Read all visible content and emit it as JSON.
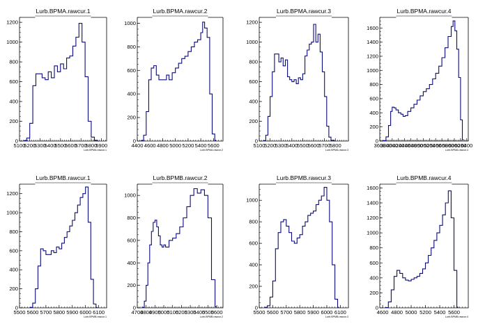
{
  "chart_data": [
    {
      "type": "line",
      "title": "Lurb.BPMA.rawcur.1",
      "xlabel": "Lurb.BPMA.rawcur.1",
      "xlim": [
        5100,
        5950
      ],
      "ylim": [
        0,
        1250
      ],
      "xticks": [
        5100,
        5200,
        5300,
        5400,
        5500,
        5600,
        5700,
        5800,
        5900
      ],
      "yticks": [
        0,
        200,
        400,
        600,
        800,
        1000,
        1200
      ],
      "x": [
        5140,
        5170,
        5200,
        5230,
        5260,
        5290,
        5320,
        5350,
        5380,
        5410,
        5440,
        5470,
        5500,
        5530,
        5560,
        5590,
        5620,
        5650,
        5680,
        5710,
        5740,
        5770,
        5800,
        5830,
        5860
      ],
      "y": [
        5,
        30,
        180,
        560,
        680,
        680,
        640,
        620,
        700,
        640,
        760,
        700,
        780,
        730,
        840,
        860,
        960,
        1050,
        1190,
        1000,
        650,
        200,
        40,
        8,
        0
      ]
    },
    {
      "type": "line",
      "title": "Lurb.BPMA.rawcur.2",
      "xlabel": "Lurb.BPMA.rawcur.2",
      "xlim": [
        4400,
        5750
      ],
      "ylim": [
        0,
        1050
      ],
      "xticks": [
        4400,
        4600,
        4800,
        5000,
        5200,
        5400,
        5600
      ],
      "yticks": [
        0,
        200,
        400,
        600,
        800,
        1000
      ],
      "x": [
        4460,
        4500,
        4540,
        4580,
        4620,
        4660,
        4700,
        4740,
        4780,
        4820,
        4860,
        4900,
        4950,
        5000,
        5050,
        5100,
        5150,
        5200,
        5250,
        5300,
        5350,
        5400,
        5430,
        5460,
        5500,
        5540,
        5580,
        5620
      ],
      "y": [
        5,
        50,
        250,
        520,
        620,
        640,
        560,
        520,
        520,
        520,
        560,
        520,
        580,
        620,
        660,
        700,
        720,
        760,
        800,
        840,
        860,
        920,
        1010,
        960,
        880,
        400,
        60,
        5
      ]
    },
    {
      "type": "line",
      "title": "Lurb.BPMA.rawcur.3",
      "xlabel": "Lurb.BPMA.rawcur.3",
      "xlim": [
        5100,
        5920
      ],
      "ylim": [
        0,
        1250
      ],
      "xticks": [
        5100,
        5200,
        5300,
        5400,
        5500,
        5600,
        5700,
        5800
      ],
      "yticks": [
        0,
        200,
        400,
        600,
        800,
        1000,
        1200
      ],
      "x": [
        5140,
        5160,
        5180,
        5200,
        5220,
        5240,
        5260,
        5280,
        5300,
        5320,
        5340,
        5360,
        5380,
        5400,
        5420,
        5440,
        5460,
        5480,
        5500,
        5520,
        5540,
        5560,
        5580,
        5600,
        5620,
        5640,
        5660,
        5680,
        5700,
        5720,
        5740,
        5760,
        5790
      ],
      "y": [
        5,
        60,
        250,
        450,
        700,
        880,
        880,
        800,
        840,
        760,
        820,
        650,
        620,
        600,
        620,
        580,
        640,
        620,
        680,
        860,
        920,
        980,
        1000,
        1180,
        1000,
        1080,
        900,
        700,
        450,
        150,
        40,
        8,
        0
      ]
    },
    {
      "type": "line",
      "title": "Lurb.BPMA.rawcur.4",
      "xlabel": "Lurb.BPMA.rawcur.4",
      "xlim": [
        3600,
        6450
      ],
      "ylim": [
        0,
        1750
      ],
      "xticks": [
        3600,
        3800,
        4000,
        4200,
        4400,
        4600,
        4800,
        5000,
        5200,
        5400,
        5600,
        5800,
        6000,
        6200,
        6400
      ],
      "yticks": [
        0,
        200,
        400,
        600,
        800,
        1000,
        1200,
        1400,
        1600
      ],
      "x": [
        3700,
        3800,
        3880,
        3950,
        4000,
        4060,
        4120,
        4200,
        4280,
        4350,
        4420,
        4500,
        4600,
        4700,
        4800,
        4900,
        5000,
        5100,
        5200,
        5300,
        5400,
        5500,
        5600,
        5700,
        5800,
        5900,
        5960,
        6020,
        6080,
        6140,
        6200,
        6260
      ],
      "y": [
        5,
        60,
        220,
        420,
        480,
        470,
        440,
        400,
        380,
        350,
        360,
        420,
        470,
        520,
        580,
        640,
        700,
        740,
        800,
        880,
        960,
        1060,
        1180,
        1320,
        1480,
        1620,
        1700,
        1560,
        1300,
        900,
        300,
        20
      ]
    },
    {
      "type": "line",
      "title": "Lurb.BPMB.rawcur.1",
      "xlabel": "Lurb.BPMB.rawcur.1",
      "xlim": [
        5500,
        6160
      ],
      "ylim": [
        0,
        1300
      ],
      "xticks": [
        5500,
        5600,
        5700,
        5800,
        5900,
        6000,
        6100
      ],
      "yticks": [
        0,
        200,
        400,
        600,
        800,
        1000,
        1200
      ],
      "x": [
        5580,
        5600,
        5620,
        5640,
        5660,
        5680,
        5700,
        5720,
        5740,
        5760,
        5780,
        5800,
        5820,
        5840,
        5860,
        5880,
        5900,
        5920,
        5940,
        5960,
        5980,
        6000,
        6020,
        6040,
        6060,
        6080
      ],
      "y": [
        5,
        50,
        200,
        440,
        620,
        600,
        560,
        560,
        600,
        580,
        640,
        620,
        680,
        740,
        800,
        860,
        920,
        1000,
        1080,
        1160,
        1200,
        1270,
        900,
        300,
        40,
        5
      ]
    },
    {
      "type": "line",
      "title": "Lurb.BPMB.rawcur.2",
      "xlabel": "Lurb.BPMB.rawcur.2",
      "xlim": [
        4700,
        5670
      ],
      "ylim": [
        0,
        1100
      ],
      "xticks": [
        4700,
        4800,
        4900,
        5000,
        5100,
        5200,
        5300,
        5400,
        5500,
        5600
      ],
      "yticks": [
        0,
        200,
        400,
        600,
        800,
        1000
      ],
      "x": [
        4760,
        4780,
        4800,
        4820,
        4840,
        4860,
        4880,
        4900,
        4920,
        4940,
        4960,
        4980,
        5000,
        5020,
        5060,
        5100,
        5140,
        5180,
        5220,
        5260,
        5300,
        5340,
        5380,
        5420,
        5460,
        5500,
        5540,
        5580
      ],
      "y": [
        5,
        60,
        200,
        400,
        560,
        680,
        760,
        780,
        720,
        640,
        560,
        540,
        560,
        540,
        600,
        620,
        660,
        720,
        800,
        900,
        1000,
        1060,
        1020,
        1050,
        1000,
        800,
        250,
        10
      ]
    },
    {
      "type": "line",
      "title": "Lurb.BPMB.rawcur.3",
      "xlabel": "Lurb.BPMB.rawcur.3",
      "xlim": [
        5500,
        6160
      ],
      "ylim": [
        0,
        1150
      ],
      "xticks": [
        5500,
        5600,
        5700,
        5800,
        5900,
        6000,
        6100
      ],
      "yticks": [
        0,
        200,
        400,
        600,
        800,
        1000
      ],
      "x": [
        5540,
        5560,
        5580,
        5600,
        5620,
        5640,
        5660,
        5680,
        5700,
        5720,
        5740,
        5760,
        5780,
        5800,
        5820,
        5840,
        5860,
        5880,
        5900,
        5920,
        5940,
        5960,
        5980,
        6000,
        6020,
        6040,
        6060,
        6080
      ],
      "y": [
        5,
        20,
        100,
        250,
        550,
        700,
        800,
        820,
        760,
        700,
        620,
        600,
        650,
        680,
        760,
        800,
        860,
        880,
        900,
        960,
        1000,
        1040,
        1120,
        1000,
        800,
        400,
        80,
        5
      ]
    },
    {
      "type": "line",
      "title": "Lurb.BPMB.rawcur.4",
      "xlabel": "Lurb.BPMB.rawcur.4",
      "xlim": [
        4560,
        5800
      ],
      "ylim": [
        0,
        1650
      ],
      "xticks": [
        4600,
        4800,
        5000,
        5200,
        5400,
        5600
      ],
      "yticks": [
        0,
        200,
        400,
        600,
        800,
        1000,
        1200,
        1400,
        1600
      ],
      "x": [
        4640,
        4680,
        4720,
        4760,
        4800,
        4840,
        4880,
        4920,
        4960,
        5000,
        5040,
        5080,
        5120,
        5160,
        5200,
        5240,
        5280,
        5320,
        5360,
        5400,
        5440,
        5480,
        5520,
        5560,
        5600,
        5640
      ],
      "y": [
        5,
        80,
        240,
        420,
        500,
        460,
        400,
        370,
        360,
        380,
        400,
        420,
        460,
        520,
        600,
        700,
        800,
        900,
        1000,
        1100,
        1240,
        1400,
        1560,
        1200,
        500,
        10
      ]
    }
  ]
}
